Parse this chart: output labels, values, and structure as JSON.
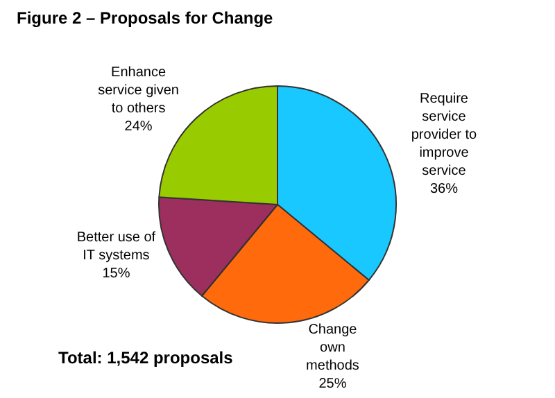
{
  "chart_data": {
    "type": "pie",
    "title": "Figure 2 – Proposals for Change",
    "categories": [
      "Require service provider to improve service",
      "Change own methods",
      "Better use of IT systems",
      "Enhance service given to others"
    ],
    "values": [
      36,
      25,
      15,
      24
    ],
    "value_labels": [
      "36%",
      "25%",
      "15%",
      "24%"
    ],
    "colors": [
      "#19c8ff",
      "#ff6a0d",
      "#9c2f5e",
      "#99cc00"
    ],
    "annotations": [
      "Total: 1,542 proposals"
    ],
    "legend": false
  }
}
